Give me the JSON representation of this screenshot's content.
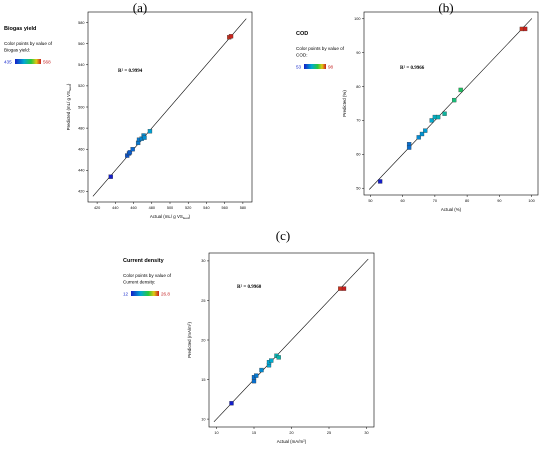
{
  "chart_data": [
    {
      "type": "scatter",
      "panel": "(a)",
      "series_title": "Biogas yield",
      "legend_caption": [
        "Color points by value of",
        "Biogas yield:"
      ],
      "color_min_label": "435",
      "color_max_label": "568",
      "color_range": [
        435,
        568
      ],
      "r2_text": "R² = 0.9994",
      "xlabel": "Actual  (mL/ g VS",
      "xlabel_sub": "feed",
      "xlabel_end": ")",
      "ylabel": "Predicted  (mL/ g VS",
      "ylabel_sub": "feed",
      "ylabel_end": ")",
      "xlim": [
        410,
        590
      ],
      "ylim": [
        410,
        590
      ],
      "xticks": [
        420,
        440,
        460,
        480,
        500,
        520,
        540,
        560,
        580
      ],
      "yticks": [
        420,
        440,
        460,
        480,
        500,
        520,
        540,
        560,
        580
      ],
      "x": [
        435,
        453,
        455,
        456,
        459,
        465,
        466,
        469,
        471,
        472,
        478,
        565,
        567
      ],
      "y": [
        434,
        454,
        456,
        457,
        460,
        466,
        469,
        470,
        473,
        471,
        477,
        566,
        567
      ]
    },
    {
      "type": "scatter",
      "panel": "(b)",
      "series_title": "COD",
      "legend_caption": [
        "Color points by value of",
        "COD:"
      ],
      "color_min_label": "53",
      "color_max_label": "98",
      "color_range": [
        53,
        98
      ],
      "r2_text": "R² = 0.9966",
      "xlabel": "Actual  (%)",
      "ylabel": "Predicted  (%)",
      "xlim": [
        48,
        102
      ],
      "ylim": [
        48,
        102
      ],
      "xticks": [
        50,
        60,
        70,
        80,
        90,
        100
      ],
      "yticks": [
        50,
        60,
        70,
        80,
        90,
        100
      ],
      "x": [
        53,
        62,
        62,
        65,
        66,
        67,
        69,
        70,
        71,
        73,
        76,
        78,
        97,
        98
      ],
      "y": [
        52,
        63,
        62,
        65,
        66,
        67,
        70,
        71,
        71,
        72,
        76,
        79,
        97,
        97
      ]
    },
    {
      "type": "scatter",
      "panel": "(c)",
      "series_title": "Current density",
      "legend_caption": [
        "Color points by value of",
        "Current density:"
      ],
      "color_min_label": "12",
      "color_max_label": "26.8",
      "color_range": [
        12,
        26.8
      ],
      "r2_text": "R² = 0.9960",
      "xlabel": "Actual  (mA/m",
      "xlabel_sup": "2",
      "xlabel_end": ")",
      "ylabel": "Predicted  (mA/m",
      "ylabel_sup": "2",
      "ylabel_end": ")",
      "xlim": [
        9,
        31
      ],
      "ylim": [
        9,
        31
      ],
      "xticks": [
        10,
        15,
        20,
        25,
        30
      ],
      "yticks": [
        10,
        15,
        20,
        25,
        30
      ],
      "x": [
        12,
        15,
        15,
        15.3,
        16,
        17,
        17,
        17.3,
        18,
        18.3,
        26.5,
        27
      ],
      "y": [
        12,
        14.8,
        15.3,
        15.5,
        16.2,
        16.8,
        17.2,
        17.4,
        18,
        17.8,
        26.5,
        26.5
      ]
    }
  ]
}
